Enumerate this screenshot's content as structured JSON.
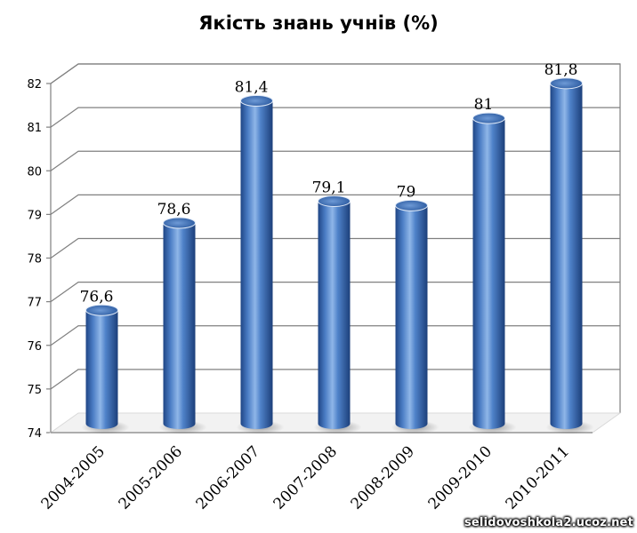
{
  "chart_data": {
    "type": "bar",
    "title": "Якість знань учнів (%)",
    "categories": [
      "2004-2005",
      "2005-2006",
      "2006-2007",
      "2007-2008",
      "2008-2009",
      "2009-2010",
      "2010-2011"
    ],
    "values": [
      76.6,
      78.6,
      81.4,
      79.1,
      79,
      81,
      81.8
    ],
    "data_labels": [
      "76,6",
      "78,6",
      "81,4",
      "79,1",
      "79",
      "81",
      "81,8"
    ],
    "yticks": [
      "74",
      "75",
      "76",
      "77",
      "78",
      "79",
      "80",
      "81",
      "82"
    ],
    "ylim": [
      74,
      82
    ],
    "grid": true,
    "bar_style": "3d-cylinder",
    "colors": {
      "bar": "#3f6fb5",
      "bar_highlight": "#8fb6e8",
      "bar_dark": "#1f4585",
      "grid": "#808080"
    }
  },
  "watermark": "selidovoshkola2.ucoz.net"
}
